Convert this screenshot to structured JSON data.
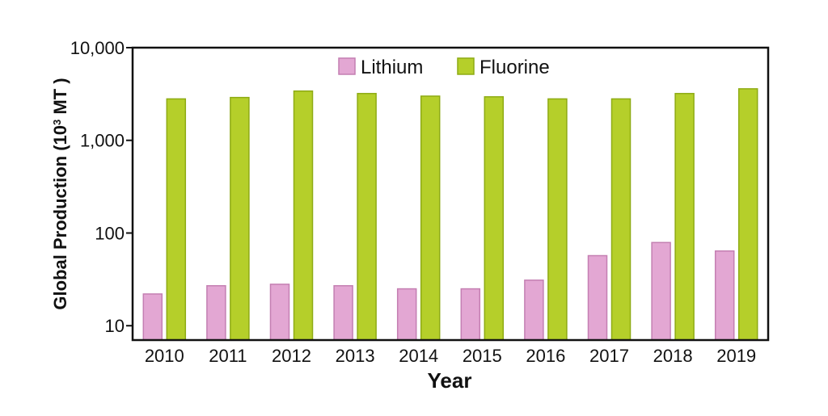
{
  "chart_data": {
    "type": "bar",
    "scale": "log",
    "categories": [
      "2010",
      "2011",
      "2012",
      "2013",
      "2014",
      "2015",
      "2016",
      "2017",
      "2018",
      "2019"
    ],
    "series": [
      {
        "name": "Lithium",
        "color": "#e3a7d3",
        "edge": "#c47fb2",
        "values": [
          22,
          27,
          28,
          27,
          25,
          25,
          31,
          57,
          79,
          64
        ]
      },
      {
        "name": "Fluorine",
        "color": "#b5cf2a",
        "edge": "#8eab14",
        "values": [
          2800,
          2900,
          3400,
          3200,
          3000,
          2950,
          2800,
          2800,
          3200,
          3600
        ]
      }
    ],
    "ylim": [
      7,
      10000
    ],
    "yticks": [
      {
        "value": 10,
        "label": "10"
      },
      {
        "value": 100,
        "label": "100"
      },
      {
        "value": 1000,
        "label": "1,000"
      },
      {
        "value": 10000,
        "label": "10,000"
      }
    ],
    "xlabel": "Year",
    "ylabel_main": "Global Production (10",
    "ylabel_sup": "3",
    "ylabel_end": " MT )",
    "legend_position": "top-center",
    "grid": false
  }
}
